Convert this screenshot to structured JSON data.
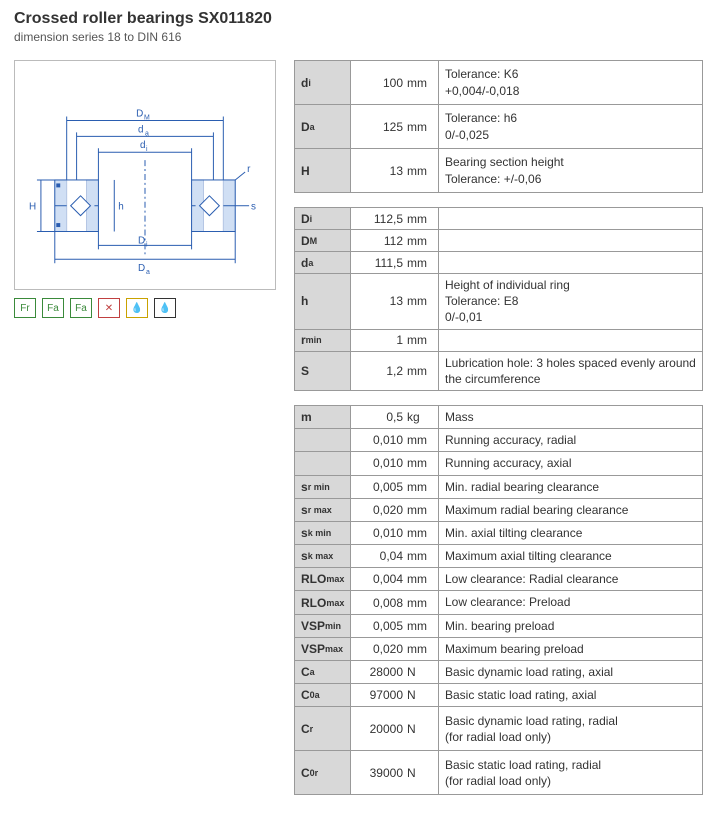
{
  "header": {
    "title": "Crossed roller bearings SX011820",
    "subtitle": "dimension series 18 to DIN 616"
  },
  "diagram": {
    "labels": {
      "DM": "D",
      "da": "d",
      "di_top": "d",
      "r": "r",
      "s": "s",
      "H": "H",
      "h": "h",
      "Di": "D",
      "Da": "D"
    },
    "stroke": "#2a5db0",
    "fill_hatch": "#7aa6e0"
  },
  "icons": [
    {
      "name": "load-radial-icon",
      "glyph": "Fr",
      "color": "#3a8a3a"
    },
    {
      "name": "load-axial1-icon",
      "glyph": "Fa",
      "color": "#3a8a3a"
    },
    {
      "name": "load-axial2-icon",
      "glyph": "Fa",
      "color": "#3a8a3a"
    },
    {
      "name": "no-maint-icon",
      "glyph": "✕",
      "color": "#c04040"
    },
    {
      "name": "grease-icon",
      "glyph": "💧",
      "color": "#c9a200"
    },
    {
      "name": "oil-icon",
      "glyph": "💧",
      "color": "#333"
    }
  ],
  "groups": [
    {
      "rows": [
        {
          "sym": "d",
          "sub": "i",
          "val": "100",
          "unit": "mm",
          "desc": [
            "Tolerance: K6",
            "+0,004/-0,018"
          ]
        },
        {
          "sym": "D",
          "sub": "a",
          "val": "125",
          "unit": "mm",
          "desc": [
            "Tolerance: h6",
            "0/-0,025"
          ]
        },
        {
          "sym": "H",
          "sub": "",
          "val": "13",
          "unit": "mm",
          "desc": [
            "Bearing section height",
            "Tolerance: +/-0,06"
          ]
        }
      ]
    },
    {
      "rows": [
        {
          "sym": "D",
          "sub": "i",
          "val": "112,5",
          "unit": "mm",
          "desc": []
        },
        {
          "sym": "D",
          "sub": "M",
          "val": "112",
          "unit": "mm",
          "desc": []
        },
        {
          "sym": "d",
          "sub": "a",
          "val": "111,5",
          "unit": "mm",
          "desc": []
        },
        {
          "sym": "h",
          "sub": "",
          "val": "13",
          "unit": "mm",
          "desc": [
            "Height of individual ring",
            "Tolerance: E8",
            "0/-0,01"
          ]
        },
        {
          "sym": "r",
          "sub": "min",
          "val": "1",
          "unit": "mm",
          "desc": []
        },
        {
          "sym": "S",
          "sub": "",
          "val": "1,2",
          "unit": "mm",
          "desc": [
            "Lubrication hole: 3 holes spaced evenly around the circumference"
          ]
        }
      ]
    },
    {
      "rows": [
        {
          "sym": "m",
          "sub": "",
          "val": "0,5",
          "unit": "kg",
          "desc": [
            "Mass"
          ]
        },
        {
          "sym": "",
          "sub": "",
          "val": "0,010",
          "unit": "mm",
          "desc": [
            "Running accuracy, radial"
          ]
        },
        {
          "sym": "",
          "sub": "",
          "val": "0,010",
          "unit": "mm",
          "desc": [
            "Running accuracy, axial"
          ]
        },
        {
          "sym": "s",
          "sub": "r min",
          "val": "0,005",
          "unit": "mm",
          "desc": [
            "Min. radial bearing clearance"
          ]
        },
        {
          "sym": "s",
          "sub": "r max",
          "val": "0,020",
          "unit": "mm",
          "desc": [
            "Maximum radial bearing clearance"
          ]
        },
        {
          "sym": "s",
          "sub": "k min",
          "val": "0,010",
          "unit": "mm",
          "desc": [
            "Min. axial tilting clearance"
          ]
        },
        {
          "sym": "s",
          "sub": "k max",
          "val": "0,04",
          "unit": "mm",
          "desc": [
            "Maximum axial tilting clearance"
          ]
        },
        {
          "sym": "RLO",
          "sub": "max",
          "val": "0,004",
          "unit": "mm",
          "desc": [
            "Low clearance: Radial clearance"
          ]
        },
        {
          "sym": "RLO",
          "sub": "max",
          "val": "0,008",
          "unit": "mm",
          "desc": [
            "Low clearance: Preload"
          ]
        },
        {
          "sym": "VSP",
          "sub": "min",
          "val": "0,005",
          "unit": "mm",
          "desc": [
            "Min. bearing preload"
          ]
        },
        {
          "sym": "VSP",
          "sub": "max",
          "val": "0,020",
          "unit": "mm",
          "desc": [
            "Maximum bearing preload"
          ]
        },
        {
          "sym": "C",
          "sub": "a",
          "val": "28000",
          "unit": "N",
          "desc": [
            "Basic dynamic load rating, axial"
          ]
        },
        {
          "sym": "C",
          "sub": "0a",
          "val": "97000",
          "unit": "N",
          "desc": [
            "Basic static load rating, axial"
          ]
        },
        {
          "sym": "C",
          "sub": "r",
          "val": "20000",
          "unit": "N",
          "desc": [
            "Basic dynamic load rating, radial",
            "(for radial load only)"
          ]
        },
        {
          "sym": "C",
          "sub": "0r",
          "val": "39000",
          "unit": "N",
          "desc": [
            "Basic static load rating, radial",
            "(for radial load only)"
          ]
        }
      ]
    }
  ]
}
